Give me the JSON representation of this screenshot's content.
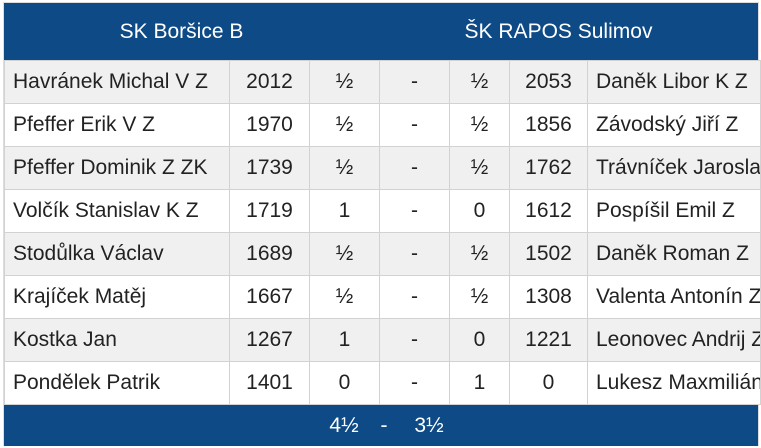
{
  "accent_color": "#0d4a86",
  "home_team": "SK Boršice B",
  "away_team": "ŠK RAPOS Sulimov",
  "boards": [
    {
      "home_player": "Havránek Michal V Z",
      "home_elo": "2012",
      "home_score": "½",
      "sep": "-",
      "away_score": "½",
      "away_elo": "2053",
      "away_player": "Daněk Libor K Z"
    },
    {
      "home_player": "Pfeffer Erik V Z",
      "home_elo": "1970",
      "home_score": "½",
      "sep": "-",
      "away_score": "½",
      "away_elo": "1856",
      "away_player": "Závodský Jiří Z"
    },
    {
      "home_player": "Pfeffer Dominik Z ZK",
      "home_elo": "1739",
      "home_score": "½",
      "sep": "-",
      "away_score": "½",
      "away_elo": "1762",
      "away_player": "Trávníček Jaroslav Z"
    },
    {
      "home_player": "Volčík Stanislav K Z",
      "home_elo": "1719",
      "home_score": "1",
      "sep": "-",
      "away_score": "0",
      "away_elo": "1612",
      "away_player": "Pospíšil Emil Z"
    },
    {
      "home_player": "Stodůlka Václav",
      "home_elo": "1689",
      "home_score": "½",
      "sep": "-",
      "away_score": "½",
      "away_elo": "1502",
      "away_player": "Daněk Roman Z"
    },
    {
      "home_player": "Krajíček Matěj",
      "home_elo": "1667",
      "home_score": "½",
      "sep": "-",
      "away_score": "½",
      "away_elo": "1308",
      "away_player": "Valenta Antonín Z"
    },
    {
      "home_player": "Kostka Jan",
      "home_elo": "1267",
      "home_score": "1",
      "sep": "-",
      "away_score": "0",
      "away_elo": "1221",
      "away_player": "Leonovec Andrij Z"
    },
    {
      "home_player": "Pondělek Patrik",
      "home_elo": "1401",
      "home_score": "0",
      "sep": "-",
      "away_score": "1",
      "away_elo": "0",
      "away_player": "Lukesz Maxmilián"
    }
  ],
  "total": {
    "home": "4½",
    "sep": "-",
    "away": "3½"
  }
}
